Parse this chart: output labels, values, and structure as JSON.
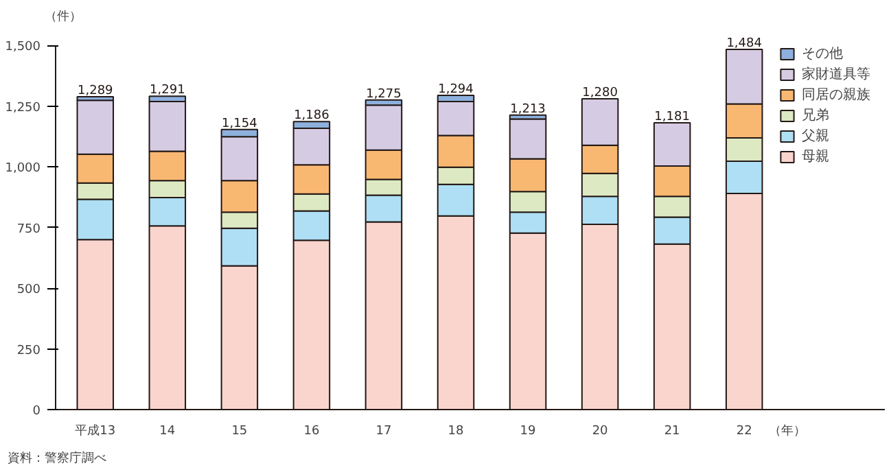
{
  "chart_data": {
    "type": "bar",
    "stacked": true,
    "ylabel": "（件）",
    "xlabel": "（年）",
    "categories": [
      "平成13",
      "14",
      "15",
      "16",
      "17",
      "18",
      "19",
      "20",
      "21",
      "22"
    ],
    "series": [
      {
        "name": "母親",
        "color": "#fad5cd",
        "values": [
          700,
          757,
          592,
          697,
          773,
          798,
          727,
          763,
          682,
          890
        ]
      },
      {
        "name": "父親",
        "color": "#aedff5",
        "values": [
          166,
          116,
          155,
          121,
          110,
          130,
          86,
          115,
          111,
          133
        ]
      },
      {
        "name": "兄弟",
        "color": "#dde9c3",
        "values": [
          67,
          70,
          66,
          70,
          65,
          70,
          85,
          95,
          85,
          96
        ]
      },
      {
        "name": "同居の親族",
        "color": "#f9b872",
        "values": [
          119,
          121,
          130,
          120,
          121,
          131,
          135,
          116,
          125,
          140
        ]
      },
      {
        "name": "家財道具等",
        "color": "#d5cce4",
        "values": [
          222,
          205,
          181,
          151,
          185,
          140,
          164,
          191,
          178,
          225
        ]
      },
      {
        "name": "その他",
        "color": "#8eb0dc",
        "values": [
          15,
          22,
          30,
          27,
          21,
          25,
          16,
          0,
          0,
          0
        ]
      }
    ],
    "totals": [
      "1,289",
      "1,291",
      "1,154",
      "1,186",
      "1,275",
      "1,294",
      "1,213",
      "1,280",
      "1,181",
      "1,484"
    ],
    "ylim": [
      0,
      1500
    ],
    "yticks": [
      0,
      {
        "value": 250,
        "label": "250"
      },
      {
        "value": 500,
        "label": "500"
      },
      {
        "value": 750,
        "label": "750"
      },
      {
        "value": 1000,
        "label": "1,000"
      },
      {
        "value": 1250,
        "label": "1,250"
      },
      {
        "value": 1500,
        "label": "1,500"
      }
    ],
    "grid": false,
    "legend": "top right",
    "annotations": [
      "資料：警察庁調べ"
    ]
  }
}
